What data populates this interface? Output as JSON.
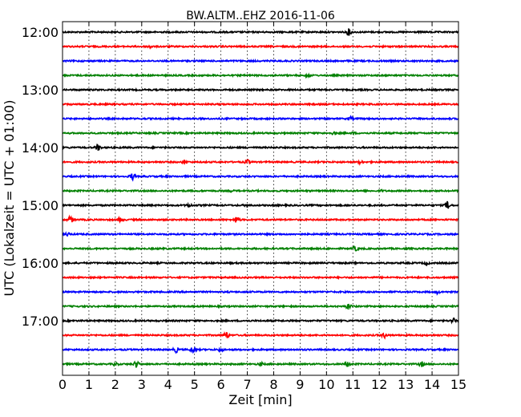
{
  "chart_data": {
    "type": "line",
    "title": "BW.ALTM..EHZ 2016-11-06",
    "xlabel": "Zeit  [min]",
    "ylabel": "UTC (Lokalzeit = UTC + 01:00)",
    "xlim": [
      0,
      15
    ],
    "x_ticks": [
      "0",
      "1",
      "2",
      "3",
      "4",
      "5",
      "6",
      "7",
      "8",
      "9",
      "10",
      "11",
      "12",
      "13",
      "14",
      "15"
    ],
    "y_ticks": [
      "12:00",
      "13:00",
      "14:00",
      "15:00",
      "16:00",
      "17:00"
    ],
    "grid": "vertical dotted",
    "trace_colors": [
      "#000000",
      "#ff0000",
      "#0000ff",
      "#008000"
    ],
    "traces": [
      {
        "start": "12:00",
        "color": "#000000",
        "events": [
          {
            "x": 10.85,
            "amp": 5
          }
        ]
      },
      {
        "start": "12:15",
        "color": "#ff0000",
        "events": [
          {
            "x": 3.3,
            "amp": 3
          }
        ]
      },
      {
        "start": "12:30",
        "color": "#0000ff",
        "events": []
      },
      {
        "start": "12:45",
        "color": "#008000",
        "events": [
          {
            "x": 9.3,
            "amp": 3
          }
        ]
      },
      {
        "start": "13:00",
        "color": "#000000",
        "events": []
      },
      {
        "start": "13:15",
        "color": "#ff0000",
        "events": []
      },
      {
        "start": "13:30",
        "color": "#0000ff",
        "events": [
          {
            "x": 10.9,
            "amp": 3
          }
        ]
      },
      {
        "start": "13:45",
        "color": "#008000",
        "events": [
          {
            "x": 10.3,
            "amp": 3
          },
          {
            "x": 11.0,
            "amp": 2
          }
        ]
      },
      {
        "start": "14:00",
        "color": "#000000",
        "events": [
          {
            "x": 1.35,
            "amp": 5
          }
        ]
      },
      {
        "start": "14:15",
        "color": "#ff0000",
        "events": [
          {
            "x": 4.6,
            "amp": 3
          },
          {
            "x": 7.0,
            "amp": 4
          },
          {
            "x": 11.3,
            "amp": 3
          }
        ]
      },
      {
        "start": "14:30",
        "color": "#0000ff",
        "events": [
          {
            "x": 2.65,
            "amp": 5
          }
        ]
      },
      {
        "start": "14:45",
        "color": "#008000",
        "events": [
          {
            "x": 6.4,
            "amp": 2
          },
          {
            "x": 12.1,
            "amp": 2
          }
        ]
      },
      {
        "start": "15:00",
        "color": "#000000",
        "events": [
          {
            "x": 4.8,
            "amp": 3
          },
          {
            "x": 7.0,
            "amp": 3
          },
          {
            "x": 14.6,
            "amp": 6
          }
        ]
      },
      {
        "start": "15:15",
        "color": "#ff0000",
        "events": [
          {
            "x": 0.3,
            "amp": 5
          },
          {
            "x": 2.2,
            "amp": 4
          },
          {
            "x": 6.6,
            "amp": 5
          }
        ]
      },
      {
        "start": "15:30",
        "color": "#0000ff",
        "events": [
          {
            "x": 0.2,
            "amp": 3
          }
        ]
      },
      {
        "start": "15:45",
        "color": "#008000",
        "events": [
          {
            "x": 11.1,
            "amp": 4
          }
        ]
      },
      {
        "start": "16:00",
        "color": "#000000",
        "events": [
          {
            "x": 13.8,
            "amp": 3
          }
        ]
      },
      {
        "start": "16:15",
        "color": "#ff0000",
        "events": []
      },
      {
        "start": "16:30",
        "color": "#0000ff",
        "events": [
          {
            "x": 14.2,
            "amp": 3
          }
        ]
      },
      {
        "start": "16:45",
        "color": "#008000",
        "events": [
          {
            "x": 10.85,
            "amp": 5
          }
        ]
      },
      {
        "start": "17:00",
        "color": "#000000",
        "events": [
          {
            "x": 14.8,
            "amp": 4
          }
        ]
      },
      {
        "start": "17:15",
        "color": "#ff0000",
        "events": [
          {
            "x": 6.2,
            "amp": 5
          },
          {
            "x": 12.2,
            "amp": 4
          }
        ]
      },
      {
        "start": "17:30",
        "color": "#0000ff",
        "events": [
          {
            "x": 4.3,
            "amp": 4
          },
          {
            "x": 4.95,
            "amp": 5
          },
          {
            "x": 6.0,
            "amp": 3
          }
        ]
      },
      {
        "start": "17:45",
        "color": "#008000",
        "events": [
          {
            "x": 2.0,
            "amp": 3
          },
          {
            "x": 2.8,
            "amp": 5
          },
          {
            "x": 7.5,
            "amp": 3
          },
          {
            "x": 10.8,
            "amp": 4
          },
          {
            "x": 13.6,
            "amp": 4
          }
        ]
      }
    ]
  }
}
